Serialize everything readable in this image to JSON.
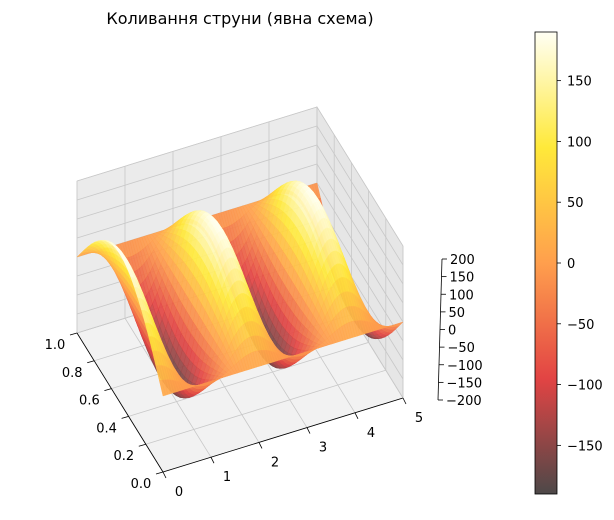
{
  "chart_data": {
    "type": "surface",
    "title": "Коливання струни (явна схема)",
    "xlabel": "",
    "ylabel": "",
    "zlabel": "",
    "x_axis": {
      "ticks": [
        0,
        1,
        2,
        3,
        4,
        5
      ],
      "tick_labels": [
        "0",
        "1",
        "2",
        "3",
        "4",
        "5"
      ],
      "range": [
        0,
        5
      ]
    },
    "y_axis": {
      "ticks": [
        0.0,
        0.2,
        0.4,
        0.6,
        0.8,
        1.0
      ],
      "tick_labels": [
        "0.0",
        "0.2",
        "0.4",
        "0.6",
        "0.8",
        "1.0"
      ],
      "range": [
        0,
        1
      ]
    },
    "z_axis": {
      "ticks": [
        -200,
        -150,
        -100,
        -50,
        0,
        50,
        100,
        150,
        200
      ],
      "tick_labels": [
        "−200",
        "−150",
        "−100",
        "−50",
        "0",
        "50",
        "100",
        "150",
        "200"
      ],
      "range": [
        -200,
        200
      ]
    },
    "surface": {
      "description_free": true,
      "amplitude": 190,
      "t_periods": 2.5,
      "mode": 1
    },
    "colorbar": {
      "colormap": "hot (alpha 0.7)",
      "range": [
        -190,
        190
      ],
      "ticks": [
        -150,
        -100,
        -50,
        0,
        50,
        100,
        150
      ],
      "tick_labels": [
        "−150",
        "−100",
        "−50",
        "0",
        "50",
        "100",
        "150"
      ]
    },
    "grid": true
  }
}
